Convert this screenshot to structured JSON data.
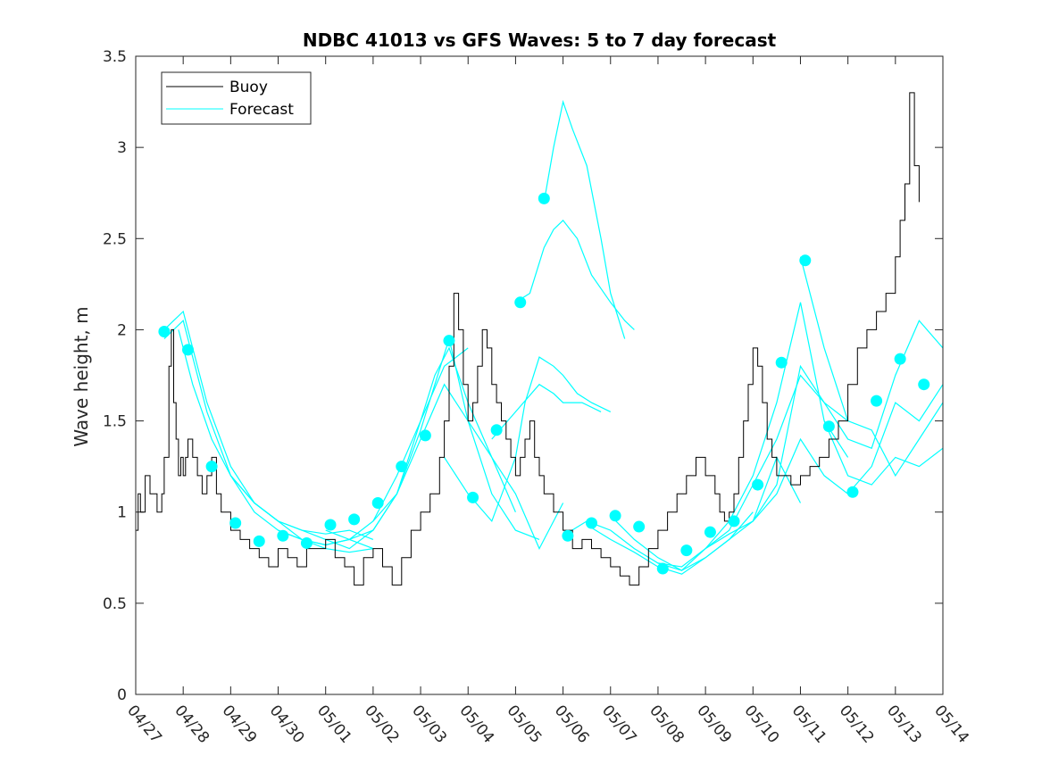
{
  "chart_data": {
    "type": "line",
    "title": "NDBC 41013 vs GFS Waves: 5 to 7 day forecast",
    "xlabel": "",
    "ylabel": "Wave height, m",
    "xlim": [
      0,
      17
    ],
    "ylim": [
      0,
      3.5
    ],
    "x_ticks": [
      0,
      1,
      2,
      3,
      4,
      5,
      6,
      7,
      8,
      9,
      10,
      11,
      12,
      13,
      14,
      15,
      16,
      17
    ],
    "x_tick_labels": [
      "04/27",
      "04/28",
      "04/29",
      "04/30",
      "05/01",
      "05/02",
      "05/03",
      "05/04",
      "05/05",
      "05/06",
      "05/07",
      "05/08",
      "05/09",
      "05/10",
      "05/11",
      "05/12",
      "05/13",
      "05/14"
    ],
    "y_ticks": [
      0,
      0.5,
      1,
      1.5,
      2,
      2.5,
      3,
      3.5
    ],
    "y_tick_labels": [
      "0",
      "0.5",
      "1",
      "1.5",
      "2",
      "2.5",
      "3",
      "3.5"
    ],
    "legend": {
      "position": "top-left",
      "entries": [
        "Buoy",
        "Forecast"
      ]
    },
    "colors": {
      "buoy": "#000000",
      "forecast": "#00ffff",
      "markers": "#00ffff"
    },
    "series": [
      {
        "name": "Buoy",
        "x": [
          0,
          0.05,
          0.1,
          0.2,
          0.3,
          0.45,
          0.55,
          0.6,
          0.7,
          0.75,
          0.8,
          0.85,
          0.9,
          0.95,
          1.0,
          1.05,
          1.1,
          1.2,
          1.3,
          1.4,
          1.5,
          1.6,
          1.7,
          1.8,
          2.0,
          2.2,
          2.4,
          2.6,
          2.8,
          3.0,
          3.2,
          3.4,
          3.6,
          3.8,
          4.0,
          4.2,
          4.4,
          4.6,
          4.8,
          5.0,
          5.2,
          5.4,
          5.6,
          5.8,
          6.0,
          6.2,
          6.4,
          6.5,
          6.6,
          6.7,
          6.8,
          6.9,
          7.0,
          7.1,
          7.2,
          7.3,
          7.4,
          7.5,
          7.6,
          7.7,
          7.8,
          7.9,
          8.0,
          8.1,
          8.2,
          8.3,
          8.4,
          8.5,
          8.6,
          8.8,
          9.0,
          9.2,
          9.4,
          9.6,
          9.8,
          10.0,
          10.2,
          10.4,
          10.6,
          10.8,
          11.0,
          11.2,
          11.4,
          11.6,
          11.8,
          12.0,
          12.2,
          12.3,
          12.4,
          12.5,
          12.6,
          12.7,
          12.8,
          12.9,
          13.0,
          13.1,
          13.2,
          13.3,
          13.4,
          13.5,
          13.6,
          13.8,
          14.0,
          14.2,
          14.4,
          14.6,
          14.8,
          15.0,
          15.2,
          15.4,
          15.6,
          15.8,
          16.0,
          16.1,
          16.2,
          16.3,
          16.4,
          16.5
        ],
        "values": [
          0.9,
          1.1,
          1.0,
          1.2,
          1.1,
          1.0,
          1.1,
          1.3,
          1.8,
          2.0,
          1.6,
          1.4,
          1.2,
          1.3,
          1.2,
          1.3,
          1.4,
          1.3,
          1.2,
          1.1,
          1.2,
          1.3,
          1.1,
          1.0,
          0.9,
          0.85,
          0.8,
          0.75,
          0.7,
          0.8,
          0.75,
          0.7,
          0.8,
          0.8,
          0.85,
          0.75,
          0.7,
          0.6,
          0.75,
          0.8,
          0.7,
          0.6,
          0.75,
          0.9,
          1.0,
          1.1,
          1.3,
          1.5,
          1.8,
          2.2,
          2.0,
          1.7,
          1.5,
          1.6,
          1.8,
          2.0,
          1.9,
          1.7,
          1.6,
          1.5,
          1.4,
          1.3,
          1.2,
          1.3,
          1.4,
          1.5,
          1.3,
          1.2,
          1.1,
          1.0,
          0.9,
          0.8,
          0.85,
          0.8,
          0.75,
          0.7,
          0.65,
          0.6,
          0.7,
          0.8,
          0.9,
          1.0,
          1.1,
          1.2,
          1.3,
          1.2,
          1.1,
          1.0,
          0.95,
          1.0,
          1.1,
          1.3,
          1.5,
          1.7,
          1.9,
          1.8,
          1.6,
          1.4,
          1.3,
          1.2,
          1.2,
          1.15,
          1.2,
          1.25,
          1.3,
          1.4,
          1.5,
          1.7,
          1.9,
          2.0,
          2.1,
          2.2,
          2.4,
          2.6,
          2.8,
          3.3,
          2.9,
          2.7
        ]
      },
      {
        "name": "Forecast",
        "segments": [
          {
            "x": [
              0.6,
              0.8,
              1.0,
              1.2,
              1.5,
              2.0,
              2.5,
              3.0,
              3.5,
              4.0,
              4.5,
              5.0
            ],
            "values": [
              2.0,
              2.05,
              2.1,
              1.9,
              1.6,
              1.25,
              1.05,
              0.95,
              0.9,
              0.88,
              0.9,
              0.85
            ]
          },
          {
            "x": [
              0.6,
              0.8,
              1.0,
              1.2,
              1.5,
              2.0,
              2.5,
              3.0,
              3.5,
              4.0,
              4.5,
              5.0
            ],
            "values": [
              1.95,
              2.0,
              2.05,
              1.85,
              1.55,
              1.2,
              1.0,
              0.9,
              0.85,
              0.82,
              0.85,
              0.8
            ]
          },
          {
            "x": [
              0.9,
              1.2,
              1.6,
              2.0,
              2.5,
              3.0,
              3.5,
              4.0,
              4.5,
              5.0
            ],
            "values": [
              2.0,
              1.7,
              1.4,
              1.2,
              1.05,
              0.95,
              0.85,
              0.8,
              0.78,
              0.8
            ]
          },
          {
            "x": [
              2.0,
              2.5,
              3.0,
              3.5,
              4.0,
              4.5,
              5.0,
              5.5,
              6.0,
              6.5,
              7.0
            ],
            "values": [
              1.2,
              1.05,
              0.95,
              0.9,
              0.85,
              0.8,
              0.9,
              1.1,
              1.5,
              1.8,
              1.9
            ]
          },
          {
            "x": [
              3.0,
              3.5,
              4.0,
              4.5,
              5.0,
              5.5,
              6.0,
              6.3,
              6.6,
              7.0,
              7.5,
              8.0
            ],
            "values": [
              0.9,
              0.85,
              0.82,
              0.85,
              0.95,
              1.2,
              1.5,
              1.75,
              1.9,
              1.6,
              1.3,
              1.0
            ]
          },
          {
            "x": [
              4.0,
              4.5,
              5.0,
              5.5,
              6.0,
              6.3,
              6.6,
              7.0,
              7.5,
              8.0,
              8.5
            ],
            "values": [
              0.9,
              0.85,
              0.9,
              1.1,
              1.45,
              1.7,
              1.95,
              1.5,
              1.1,
              0.9,
              0.85
            ]
          },
          {
            "x": [
              5.0,
              5.5,
              6.0,
              6.5,
              7.0,
              7.5,
              8.0,
              8.5,
              9.0
            ],
            "values": [
              0.95,
              1.1,
              1.4,
              1.7,
              1.5,
              1.3,
              1.1,
              0.8,
              1.05
            ]
          },
          {
            "x": [
              6.5,
              7.0,
              7.5,
              8.0,
              8.2,
              8.5,
              8.8,
              9.0,
              9.3,
              9.6,
              10.0
            ],
            "values": [
              1.3,
              1.1,
              0.95,
              1.3,
              1.6,
              1.85,
              1.8,
              1.75,
              1.65,
              1.6,
              1.55
            ]
          },
          {
            "x": [
              7.5,
              8.0,
              8.5,
              8.8,
              9.0,
              9.4,
              9.8
            ],
            "values": [
              1.4,
              1.55,
              1.7,
              1.65,
              1.6,
              1.6,
              1.55
            ]
          },
          {
            "x": [
              8.0,
              8.3,
              8.6,
              8.8,
              9.0,
              9.3,
              9.6,
              10.0,
              10.3,
              10.5
            ],
            "values": [
              2.15,
              2.2,
              2.45,
              2.55,
              2.6,
              2.5,
              2.3,
              2.15,
              2.05,
              2.0
            ]
          },
          {
            "x": [
              8.6,
              8.8,
              9.0,
              9.2,
              9.5,
              9.8,
              10.0,
              10.3
            ],
            "values": [
              2.7,
              3.0,
              3.25,
              3.1,
              2.9,
              2.5,
              2.2,
              1.95
            ]
          },
          {
            "x": [
              9.0,
              9.5,
              10.0,
              10.5,
              11.0,
              11.5,
              12.0,
              12.5,
              13.0
            ],
            "values": [
              0.87,
              0.95,
              0.9,
              0.8,
              0.72,
              0.68,
              0.75,
              0.85,
              1.0
            ]
          },
          {
            "x": [
              9.5,
              10.0,
              10.5,
              11.0,
              11.5,
              12.0,
              12.5,
              13.0,
              13.5,
              14.0
            ],
            "values": [
              0.93,
              0.85,
              0.78,
              0.7,
              0.66,
              0.75,
              0.85,
              0.95,
              1.3,
              1.05
            ]
          },
          {
            "x": [
              10.0,
              10.5,
              11.0,
              11.5,
              12.0,
              12.5,
              13.0,
              13.5,
              14.0,
              14.5,
              15.0
            ],
            "values": [
              0.98,
              0.85,
              0.75,
              0.68,
              0.8,
              0.95,
              1.2,
              1.6,
              2.15,
              1.5,
              1.3
            ]
          },
          {
            "x": [
              11.0,
              11.5,
              12.0,
              12.5,
              13.0,
              13.5,
              14.0,
              14.5,
              15.0
            ],
            "values": [
              0.72,
              0.7,
              0.8,
              0.9,
              1.15,
              1.4,
              1.75,
              1.6,
              1.5
            ]
          },
          {
            "x": [
              12.0,
              12.5,
              13.0,
              13.5,
              14.0,
              14.5,
              15.0,
              15.5,
              16.0,
              16.5,
              17.0
            ],
            "values": [
              0.8,
              0.88,
              0.95,
              1.15,
              1.8,
              1.6,
              1.4,
              1.35,
              1.75,
              2.05,
              1.9
            ]
          },
          {
            "x": [
              13.0,
              13.5,
              14.0,
              14.5,
              15.0,
              15.5,
              16.0,
              16.5,
              17.0
            ],
            "values": [
              0.95,
              1.1,
              1.4,
              1.2,
              1.1,
              1.25,
              1.6,
              1.5,
              1.7
            ]
          },
          {
            "x": [
              14.0,
              14.5,
              15.0,
              15.5,
              16.0,
              16.5,
              17.0
            ],
            "values": [
              2.4,
              1.9,
              1.5,
              1.45,
              1.2,
              1.4,
              1.6
            ]
          },
          {
            "x": [
              14.5,
              15.0,
              15.5,
              16.0,
              16.5,
              17.0
            ],
            "values": [
              1.5,
              1.2,
              1.15,
              1.3,
              1.25,
              1.35
            ]
          }
        ]
      },
      {
        "name": "Forecast markers",
        "x": [
          0.6,
          1.1,
          1.6,
          2.1,
          2.6,
          3.1,
          3.6,
          4.1,
          4.6,
          5.1,
          5.6,
          6.1,
          6.6,
          7.1,
          7.6,
          8.1,
          8.6,
          9.1,
          9.6,
          10.1,
          10.6,
          11.1,
          11.6,
          12.1,
          12.6,
          13.1,
          13.6,
          14.1,
          14.6,
          15.1,
          15.6,
          16.1,
          16.6
        ],
        "values": [
          1.99,
          1.89,
          1.25,
          0.94,
          0.84,
          0.87,
          0.83,
          0.93,
          0.96,
          1.05,
          1.25,
          1.42,
          1.94,
          1.08,
          1.45,
          2.15,
          2.72,
          0.87,
          0.94,
          0.98,
          0.92,
          0.69,
          0.79,
          0.89,
          0.95,
          1.15,
          1.82,
          2.38,
          1.47,
          1.11,
          1.61,
          1.84,
          1.7
        ]
      }
    ]
  }
}
